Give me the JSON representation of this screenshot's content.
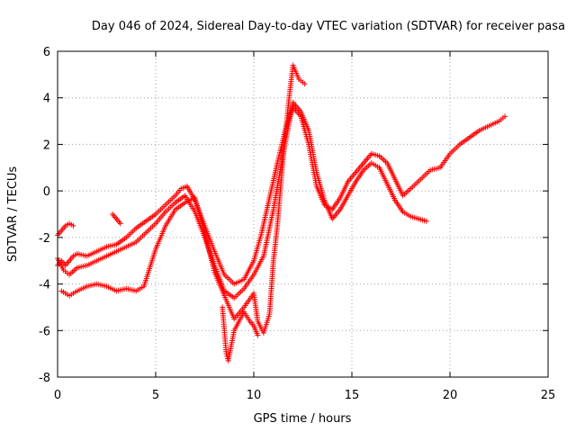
{
  "chart_data": {
    "type": "scatter",
    "title": "Day 046 of 2024, Sidereal Day-to-day VTEC variation (SDTVAR) for receiver pasa",
    "xlabel": "GPS time / hours",
    "ylabel": "SDTVAR / TECUs",
    "xlim": [
      0,
      25
    ],
    "ylim": [
      -8,
      6
    ],
    "xticks": [
      "0",
      "5",
      "10",
      "15",
      "20",
      "25"
    ],
    "yticks": [
      "-8",
      "-6",
      "-4",
      "-2",
      "0",
      "2",
      "4",
      "6"
    ],
    "grid": true,
    "marker": "+",
    "color": "#ff0000",
    "series": [
      {
        "x": [
          0.0,
          0.2,
          0.4,
          0.6,
          0.8,
          1.0,
          1.5,
          2.0,
          2.5,
          3.0,
          3.5,
          4.0,
          4.5,
          5.0,
          5.5,
          6.0,
          6.3,
          6.6,
          7.0,
          7.5,
          8.0,
          8.5,
          9.0,
          9.5,
          10.0,
          10.4,
          10.8,
          11.2,
          11.6,
          12.0,
          12.4,
          12.8,
          13.2,
          13.6,
          14.0,
          14.4,
          14.8,
          15.2,
          15.6,
          16.0,
          16.4,
          16.8,
          17.2,
          17.6,
          18.0,
          18.5,
          19.0,
          19.5,
          20.0,
          20.5,
          21.0,
          21.5,
          22.0,
          22.5,
          22.8
        ],
        "y": [
          -3.2,
          -3.0,
          -3.2,
          -3.0,
          -2.8,
          -2.7,
          -2.8,
          -2.6,
          -2.4,
          -2.3,
          -2.0,
          -1.6,
          -1.3,
          -1.0,
          -0.6,
          -0.2,
          0.1,
          0.2,
          -0.4,
          -1.5,
          -2.6,
          -3.6,
          -4.0,
          -3.8,
          -3.0,
          -1.8,
          -0.3,
          1.2,
          2.6,
          3.6,
          3.2,
          2.0,
          0.2,
          -0.6,
          -0.8,
          -0.3,
          0.4,
          0.8,
          1.2,
          1.6,
          1.5,
          1.2,
          0.5,
          -0.2,
          0.1,
          0.5,
          0.9,
          1.0,
          1.6,
          2.0,
          2.3,
          2.6,
          2.8,
          3.0,
          3.2
        ]
      },
      {
        "x": [
          0.0,
          0.3,
          0.6,
          1.0,
          1.5,
          2.0,
          2.5,
          3.0,
          3.5,
          4.0,
          4.5,
          5.0,
          5.5,
          6.0,
          6.5,
          7.0,
          7.5,
          8.0,
          8.5,
          9.0,
          9.5,
          10.0,
          10.5,
          11.0,
          11.5,
          12.0,
          12.4,
          12.8,
          13.2,
          13.6,
          14.0,
          14.4,
          14.8,
          15.2,
          15.6,
          16.0,
          16.4,
          16.8,
          17.2,
          17.6,
          18.0,
          18.4,
          18.8
        ],
        "y": [
          -2.9,
          -3.4,
          -3.6,
          -3.3,
          -3.2,
          -3.0,
          -2.8,
          -2.6,
          -2.4,
          -2.2,
          -1.8,
          -1.4,
          -0.9,
          -0.5,
          -0.2,
          -0.9,
          -2.0,
          -3.2,
          -4.3,
          -4.6,
          -4.2,
          -3.6,
          -2.8,
          -0.8,
          1.6,
          3.8,
          3.4,
          2.6,
          0.8,
          -0.4,
          -1.2,
          -0.8,
          -0.2,
          0.4,
          0.9,
          1.2,
          1.0,
          0.3,
          -0.4,
          -0.9,
          -1.1,
          -1.2,
          -1.3
        ]
      },
      {
        "x": [
          0.2,
          0.6,
          1.0,
          1.5,
          2.0,
          2.5,
          3.0,
          3.5,
          4.0,
          4.4,
          5.0,
          5.5,
          6.0,
          6.5,
          7.0,
          7.5,
          8.0,
          8.5,
          9.0,
          9.5,
          10.0,
          10.2,
          10.5,
          10.8,
          11.0,
          11.2,
          11.5,
          11.8,
          12.0,
          12.3,
          12.6
        ],
        "y": [
          -4.3,
          -4.5,
          -4.3,
          -4.1,
          -4.0,
          -4.1,
          -4.3,
          -4.2,
          -4.3,
          -4.1,
          -2.5,
          -1.5,
          -0.8,
          -0.5,
          -0.3,
          -1.8,
          -3.5,
          -4.5,
          -5.5,
          -5.0,
          -4.4,
          -5.6,
          -6.1,
          -5.3,
          -3.0,
          -1.5,
          1.5,
          4.0,
          5.4,
          4.8,
          4.6
        ]
      },
      {
        "x": [
          0.0,
          0.2,
          0.4,
          0.6,
          0.8,
          2.8,
          3.0,
          3.2,
          8.4,
          8.5,
          8.6,
          8.7,
          9.0,
          9.5,
          9.8,
          10.0,
          10.2
        ],
        "y": [
          -1.9,
          -1.7,
          -1.5,
          -1.4,
          -1.5,
          -1.0,
          -1.2,
          -1.4,
          -5.0,
          -6.0,
          -7.0,
          -7.3,
          -6.0,
          -5.2,
          -5.6,
          -5.8,
          -6.2
        ]
      }
    ]
  }
}
